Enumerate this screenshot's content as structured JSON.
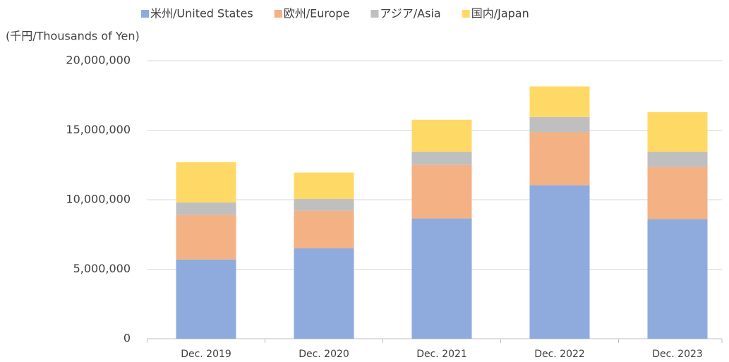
{
  "chart_data": {
    "type": "stacked_bar",
    "y_axis_label": "(千円/Thousands of Yen)",
    "categories": [
      "Dec. 2019",
      "Dec. 2020",
      "Dec. 2021",
      "Dec. 2022",
      "Dec. 2023"
    ],
    "series": [
      {
        "name": "米州/United States",
        "color": "#8faadc",
        "values": [
          5700000,
          6500000,
          8650000,
          11050000,
          8600000
        ]
      },
      {
        "name": "欧州/Europe",
        "color": "#f4b183",
        "values": [
          3200000,
          2700000,
          3850000,
          3800000,
          3750000
        ]
      },
      {
        "name": "アジア/Asia",
        "color": "#bfbfbf",
        "values": [
          900000,
          850000,
          950000,
          1100000,
          1100000
        ]
      },
      {
        "name": "国内/Japan",
        "color": "#ffd966",
        "values": [
          2900000,
          1900000,
          2300000,
          2200000,
          2850000
        ]
      }
    ],
    "ylim": [
      0,
      20000000
    ],
    "yticks": [
      0,
      {
        "value": 5000000,
        "label": "5,000,000"
      },
      {
        "value": 10000000,
        "label": "10,000,000"
      },
      {
        "value": 15000000,
        "label": "15,000,000"
      },
      {
        "value": 20000000,
        "label": "20,000,000"
      }
    ],
    "grid": true,
    "legend": "top"
  }
}
